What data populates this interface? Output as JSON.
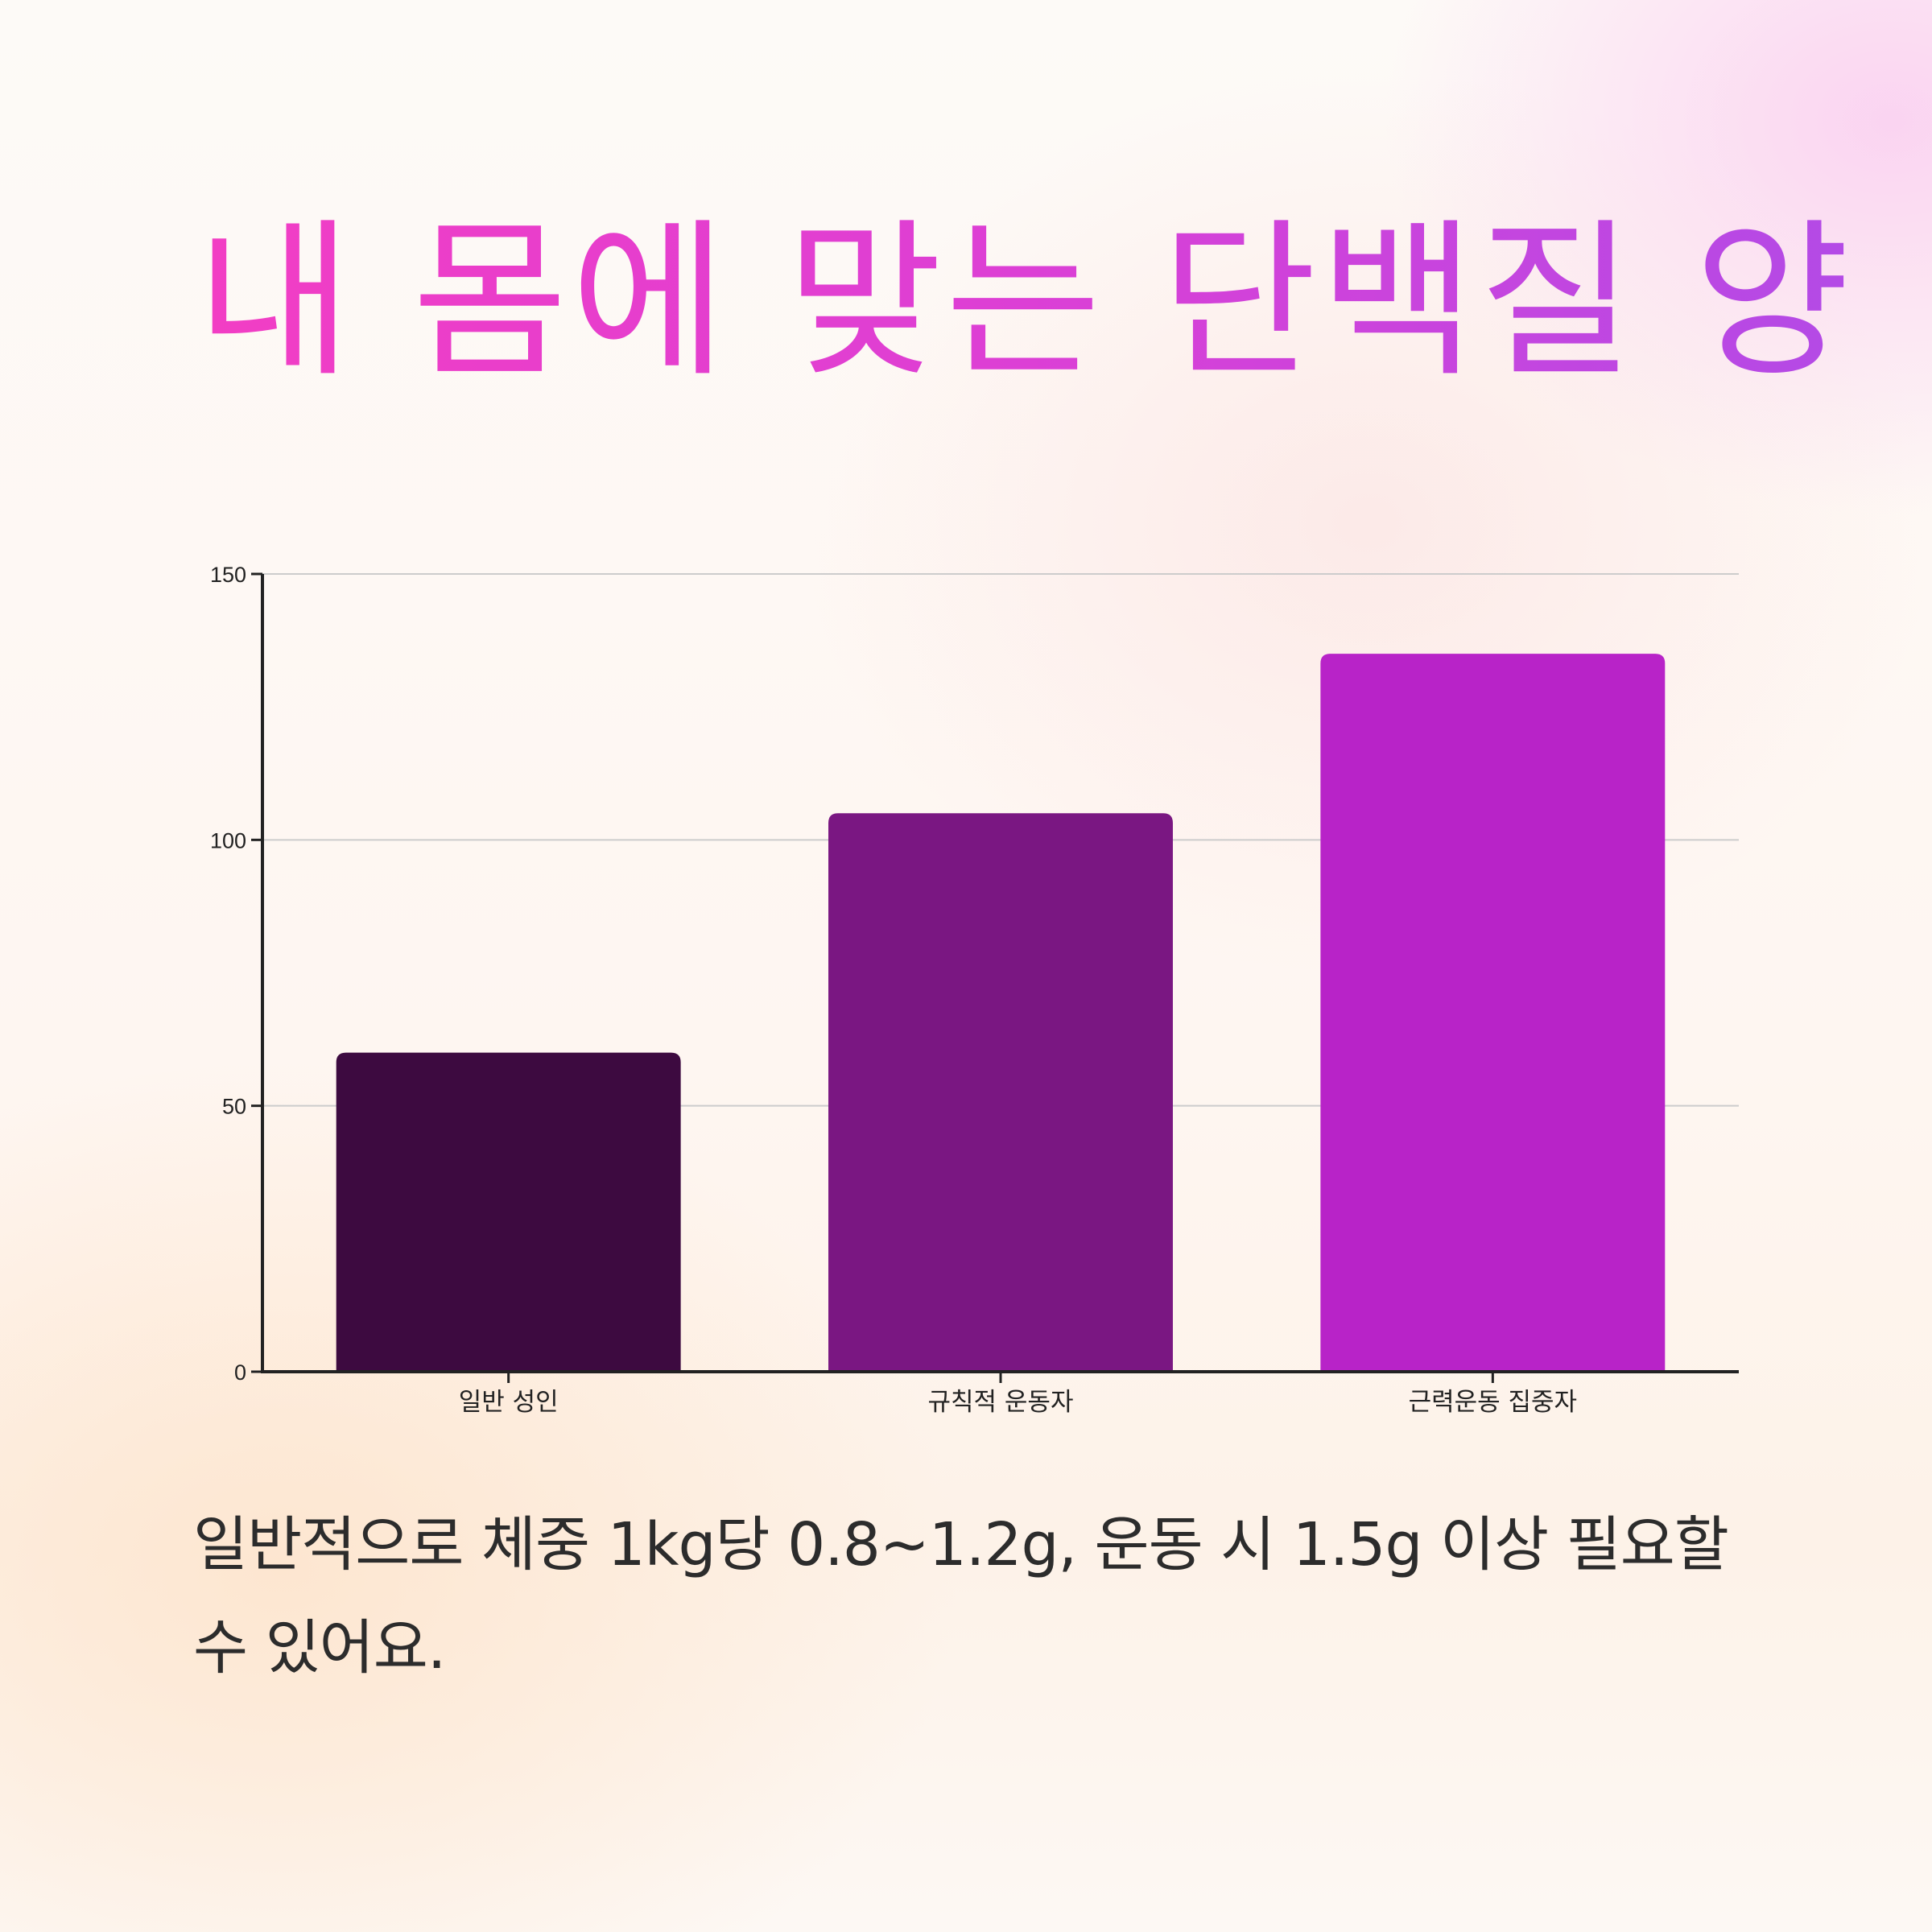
{
  "title": "내 몸에 맞는 단백질 양",
  "caption": "일반적으로 체중 1kg당 0.8~1.2g, 운동 시 1.5g 이상 필요할 수 있어요.",
  "chart_data": {
    "type": "bar",
    "categories": [
      "일반 성인",
      "규칙적 운동자",
      "근력운동 집중자"
    ],
    "values": [
      60,
      105,
      135
    ],
    "colors": [
      "#3d0a40",
      "#7a1782",
      "#b823c8"
    ],
    "ylim": [
      0,
      150
    ],
    "yticks": [
      0,
      50,
      100,
      150
    ],
    "grid": true,
    "xlabel": "",
    "ylabel": ""
  }
}
